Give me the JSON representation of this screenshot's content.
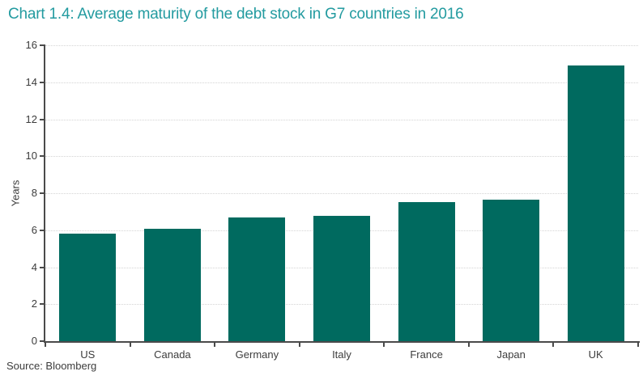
{
  "chart_data": {
    "type": "bar",
    "title": "Chart 1.4: Average maturity of the debt stock in G7 countries in 2016",
    "categories": [
      "US",
      "Canada",
      "Germany",
      "Italy",
      "France",
      "Japan",
      "UK"
    ],
    "values": [
      5.8,
      6.1,
      6.7,
      6.8,
      7.5,
      7.65,
      14.9
    ],
    "xlabel": "",
    "ylabel": "Years",
    "ylim": [
      0,
      16
    ],
    "ytick_step": 2,
    "grid": "horizontal-dotted",
    "legend": "none",
    "source": "Source: Bloomberg",
    "colors": {
      "bar": "#006A5F",
      "title": "#239BA0",
      "axis": "#4A4A4A",
      "gridline": "#D4D4D4",
      "text": "#3C3C3C"
    }
  }
}
